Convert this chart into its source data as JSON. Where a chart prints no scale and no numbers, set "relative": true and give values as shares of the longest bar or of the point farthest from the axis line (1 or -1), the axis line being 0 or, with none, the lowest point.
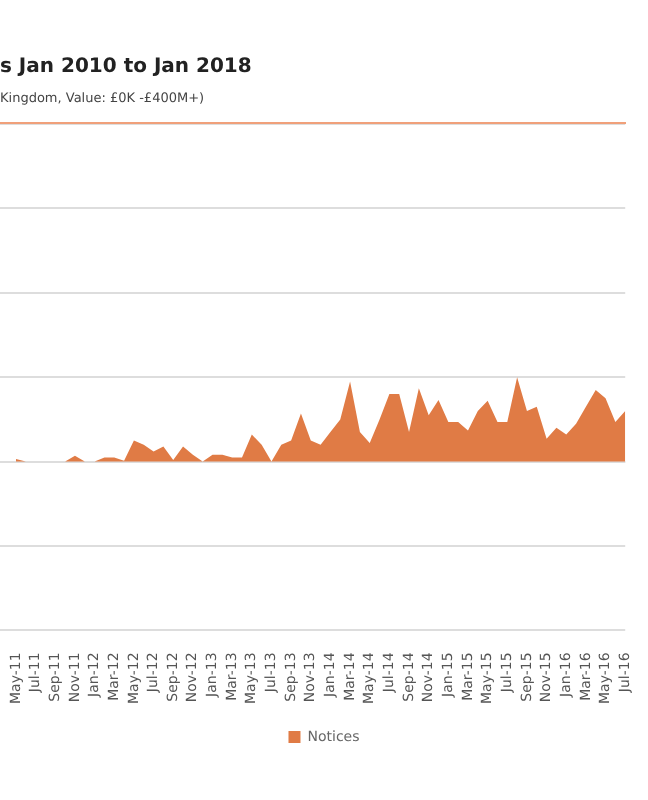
{
  "chart_data": {
    "type": "area",
    "title": "s Jan 2010 to Jan 2018",
    "subtitle": "Kingdom, Value: £0K -£400M+)",
    "categories": [
      "May-11",
      null,
      "Jul-11",
      null,
      "Sep-11",
      null,
      "Nov-11",
      null,
      "Jan-12",
      null,
      "Mar-12",
      null,
      "May-12",
      null,
      "Jul-12",
      null,
      "Sep-12",
      null,
      "Nov-12",
      null,
      "Jan-13",
      null,
      "Mar-13",
      null,
      "May-13",
      null,
      "Jul-13",
      null,
      "Sep-13",
      null,
      "Nov-13",
      null,
      "Jan-14",
      null,
      "Mar-14",
      null,
      "May-14",
      null,
      "Jul-14",
      null,
      "Sep-14",
      null,
      "Nov-14",
      null,
      "Jan-15",
      null,
      "Mar-15",
      null,
      "May-15",
      null,
      "Jul-15",
      null,
      "Sep-15",
      null,
      "Nov-15",
      null,
      "Jan-16",
      null,
      "Mar-16",
      null,
      "May-16",
      null,
      "Jul-16"
    ],
    "series": [
      {
        "name": "Notices",
        "color": "#e07b45",
        "values": [
          0.03,
          0,
          0,
          0,
          0,
          0,
          0.07,
          0,
          0,
          0.05,
          0.05,
          0.01,
          0.25,
          0.2,
          0.12,
          0.18,
          0.02,
          0.18,
          0.08,
          0,
          0.08,
          0.08,
          0.05,
          0.05,
          0.32,
          0.2,
          0,
          0.2,
          0.25,
          0.57,
          0.25,
          0.2,
          0.35,
          0.5,
          0.95,
          0.35,
          0.22,
          0.5,
          0.8,
          0.8,
          0.35,
          0.87,
          0.55,
          0.73,
          0.47,
          0.47,
          0.37,
          0.6,
          0.72,
          0.47,
          0.47,
          1,
          0.6,
          0.65,
          0.27,
          0.4,
          0.32,
          0.45,
          0.65,
          0.85,
          0.75,
          0.47,
          0.6
        ]
      }
    ],
    "relative": true,
    "grid": "y",
    "legend": "bottom"
  }
}
